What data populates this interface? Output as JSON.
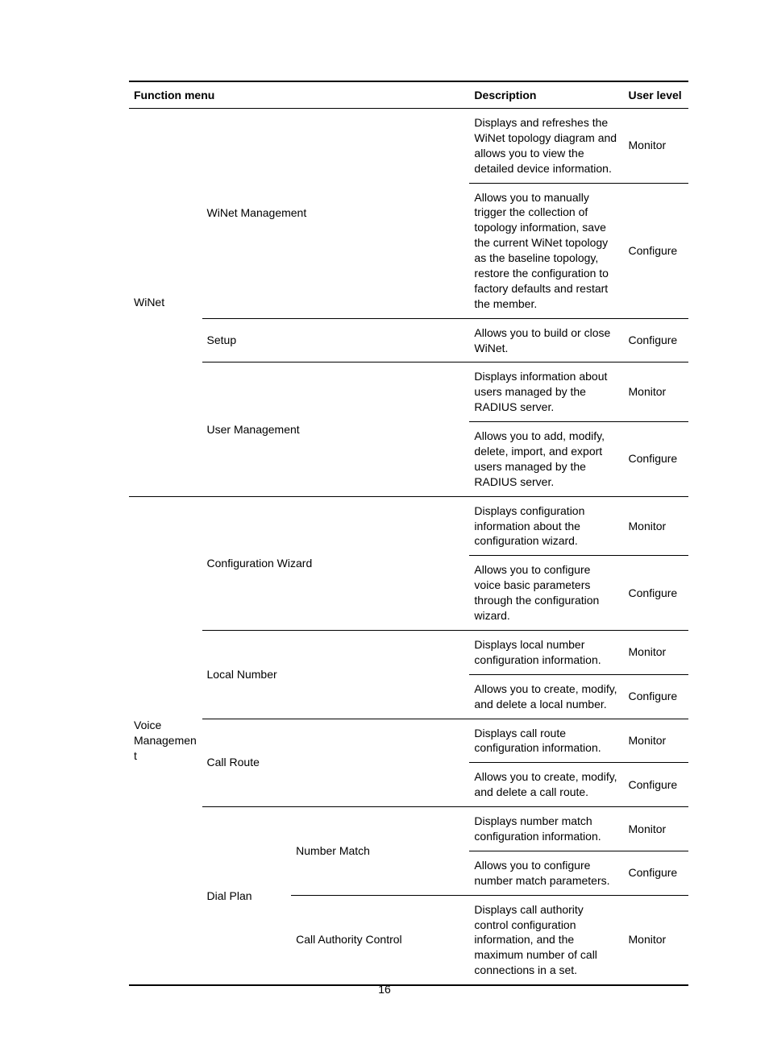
{
  "page_number": "16",
  "headers": {
    "function_menu": "Function menu",
    "description": "Description",
    "user_level": "User level"
  },
  "levels": {
    "monitor": "Monitor",
    "configure": "Configure"
  },
  "groups": {
    "winet": {
      "label": "WiNet",
      "wi_mgmt": {
        "label": "WiNet Management",
        "d1": "Displays and refreshes the WiNet topology diagram and allows you to view the detailed device information.",
        "d2": "Allows you to manually trigger the collection of topology information, save the current WiNet topology as the baseline topology, restore the configuration to factory defaults and restart the member."
      },
      "setup": {
        "label": "Setup",
        "d1": "Allows you to build or close WiNet."
      },
      "user_mgmt": {
        "label": "User Management",
        "d1": "Displays information about users managed by the RADIUS server.",
        "d2": "Allows you to add, modify, delete, import, and export users managed by the RADIUS server."
      }
    },
    "voice": {
      "label": "Voice Management",
      "cfg_wizard": {
        "label": "Configuration Wizard",
        "d1": "Displays configuration information about the configuration wizard.",
        "d2": "Allows you to configure voice basic parameters through the configuration wizard."
      },
      "local_number": {
        "label": "Local Number",
        "d1": "Displays local number configuration information.",
        "d2": "Allows you to create, modify, and delete a local number."
      },
      "call_route": {
        "label": "Call Route",
        "d1": "Displays call route configuration information.",
        "d2": "Allows you to create, modify, and delete a call route."
      },
      "dial_plan": {
        "label": "Dial Plan",
        "number_match": {
          "label": "Number Match",
          "d1": "Displays number match configuration information.",
          "d2": "Allows you to configure number match parameters."
        },
        "call_auth": {
          "label": "Call Authority Control",
          "d1": "Displays call authority control configuration information, and the maximum number of call connections in a set."
        }
      }
    }
  }
}
